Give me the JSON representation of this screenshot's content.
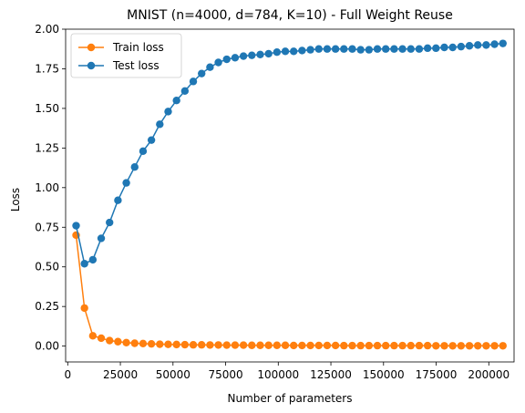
{
  "chart_data": {
    "type": "line",
    "title": "MNIST (n=4000, d=784, K=10) - Full Weight Reuse",
    "xlabel": "Number of parameters",
    "ylabel": "Loss",
    "xlim": [
      -1000,
      212000
    ],
    "ylim": [
      -0.1,
      2.0
    ],
    "xticks": [
      0,
      25000,
      50000,
      75000,
      100000,
      125000,
      150000,
      175000,
      200000
    ],
    "xtick_labels": [
      "0",
      "25000",
      "50000",
      "75000",
      "100000",
      "125000",
      "150000",
      "175000",
      "200000"
    ],
    "yticks": [
      0.0,
      0.25,
      0.5,
      0.75,
      1.0,
      1.25,
      1.5,
      1.75,
      2.0
    ],
    "ytick_labels": [
      "0.00",
      "0.25",
      "0.50",
      "0.75",
      "1.00",
      "1.25",
      "1.50",
      "1.75",
      "2.00"
    ],
    "grid": false,
    "legend_position": "top-left",
    "x": [
      3975,
      7950,
      11925,
      15900,
      19875,
      23850,
      27825,
      31800,
      35775,
      39750,
      43725,
      47700,
      51675,
      55650,
      59625,
      63600,
      67575,
      71550,
      75525,
      79500,
      83475,
      87450,
      91425,
      95400,
      99375,
      103350,
      107325,
      111300,
      115275,
      119250,
      123225,
      127200,
      131175,
      135150,
      139125,
      143100,
      147075,
      151050,
      155025,
      159000,
      162975,
      166950,
      170925,
      174900,
      178875,
      182850,
      186825,
      190800,
      194775,
      198750,
      202725,
      206700
    ],
    "series": [
      {
        "name": "Train loss",
        "color": "#ff7f0e",
        "values": [
          0.7,
          0.24,
          0.065,
          0.05,
          0.035,
          0.028,
          0.022,
          0.018,
          0.016,
          0.014,
          0.012,
          0.011,
          0.01,
          0.009,
          0.008,
          0.008,
          0.007,
          0.007,
          0.006,
          0.006,
          0.006,
          0.005,
          0.005,
          0.005,
          0.005,
          0.005,
          0.004,
          0.004,
          0.004,
          0.004,
          0.004,
          0.004,
          0.003,
          0.003,
          0.003,
          0.003,
          0.003,
          0.003,
          0.003,
          0.003,
          0.003,
          0.003,
          0.003,
          0.002,
          0.002,
          0.002,
          0.002,
          0.002,
          0.002,
          0.002,
          0.002,
          0.002
        ]
      },
      {
        "name": "Test loss",
        "color": "#1f77b4",
        "values": [
          0.76,
          0.52,
          0.545,
          0.68,
          0.78,
          0.92,
          1.03,
          1.13,
          1.23,
          1.3,
          1.4,
          1.48,
          1.55,
          1.61,
          1.67,
          1.72,
          1.76,
          1.79,
          1.81,
          1.82,
          1.83,
          1.835,
          1.84,
          1.845,
          1.855,
          1.86,
          1.86,
          1.865,
          1.87,
          1.875,
          1.875,
          1.875,
          1.875,
          1.875,
          1.87,
          1.87,
          1.875,
          1.875,
          1.875,
          1.875,
          1.875,
          1.875,
          1.88,
          1.88,
          1.885,
          1.885,
          1.89,
          1.895,
          1.9,
          1.9,
          1.905,
          1.91
        ]
      }
    ]
  }
}
